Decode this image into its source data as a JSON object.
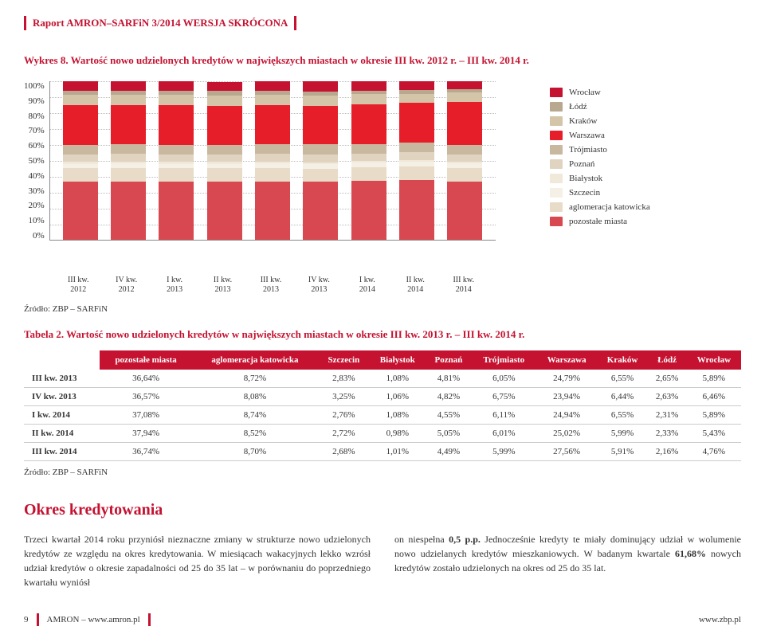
{
  "report_header": "Raport AMRON–SARFiN 3/2014 WERSJA SKRÓCONA",
  "chart": {
    "title": "Wykres 8. Wartość nowo udzielonych kredytów w największych miastach w okresie III kw. 2012 r. – III kw. 2014 r.",
    "yticks": [
      "100%",
      "90%",
      "80%",
      "70%",
      "60%",
      "50%",
      "40%",
      "30%",
      "20%",
      "10%",
      "0%"
    ],
    "xlabels": [
      "III kw.\n2012",
      "IV kw.\n2012",
      "I kw.\n2013",
      "II kw.\n2013",
      "III kw.\n2013",
      "IV kw.\n2013",
      "I kw.\n2014",
      "II kw.\n2014",
      "III kw.\n2014"
    ],
    "series": [
      {
        "label": "Wrocław",
        "color": "#c41230"
      },
      {
        "label": "Łódź",
        "color": "#b8a890"
      },
      {
        "label": "Kraków",
        "color": "#d4c4a8"
      },
      {
        "label": "Warszawa",
        "color": "#e61e2a"
      },
      {
        "label": "Trójmiasto",
        "color": "#c9b8a0"
      },
      {
        "label": "Poznań",
        "color": "#e0d4c0"
      },
      {
        "label": "Białystok",
        "color": "#f0e8d8"
      },
      {
        "label": "Szczecin",
        "color": "#f5f0e5"
      },
      {
        "label": "aglomeracja katowicka",
        "color": "#e8dcc8"
      },
      {
        "label": "pozostałe miasta",
        "color": "#d84850"
      }
    ],
    "stacks": [
      [
        36.5,
        8.7,
        2.8,
        1.1,
        4.8,
        6.1,
        24.8,
        6.5,
        2.6,
        5.9
      ],
      [
        36.6,
        8.7,
        2.9,
        1.1,
        4.8,
        6.2,
        24.5,
        6.5,
        2.6,
        5.9
      ],
      [
        36.5,
        8.7,
        2.8,
        1.1,
        4.8,
        6.1,
        24.8,
        6.5,
        2.6,
        5.9
      ],
      [
        36.6,
        8.6,
        2.8,
        1.1,
        4.8,
        6.1,
        24.7,
        6.5,
        2.6,
        5.9
      ],
      [
        36.64,
        8.72,
        2.83,
        1.08,
        4.81,
        6.05,
        24.79,
        6.55,
        2.65,
        5.89
      ],
      [
        36.57,
        8.08,
        3.25,
        1.06,
        4.82,
        6.75,
        23.94,
        6.44,
        2.63,
        6.46
      ],
      [
        37.08,
        8.74,
        2.76,
        1.08,
        4.55,
        6.11,
        24.94,
        6.55,
        2.31,
        5.89
      ],
      [
        37.94,
        8.52,
        2.72,
        0.98,
        5.05,
        6.01,
        25.02,
        5.99,
        2.33,
        5.43
      ],
      [
        36.74,
        8.7,
        2.68,
        1.01,
        4.49,
        5.99,
        27.56,
        5.91,
        2.16,
        4.76
      ]
    ],
    "stack_colors_bottom_to_top": [
      "#d84850",
      "#e8dcc8",
      "#f5f0e5",
      "#f0e8d8",
      "#e0d4c0",
      "#c9b8a0",
      "#e61e2a",
      "#d4c4a8",
      "#b8a890",
      "#c41230"
    ],
    "grid_color": "#bbbbbb",
    "background_color": "#ffffff"
  },
  "source_label": "Źródło: ZBP – SARFiN",
  "table": {
    "title": "Tabela 2. Wartość nowo udzielonych kredytów w największych miastach w okresie III kw. 2013 r. – III kw. 2014 r.",
    "columns": [
      "",
      "pozostałe miasta",
      "aglomeracja katowicka",
      "Szczecin",
      "Białystok",
      "Poznań",
      "Trójmiasto",
      "Warszawa",
      "Kraków",
      "Łódź",
      "Wrocław"
    ],
    "rows": [
      [
        "III kw. 2013",
        "36,64%",
        "8,72%",
        "2,83%",
        "1,08%",
        "4,81%",
        "6,05%",
        "24,79%",
        "6,55%",
        "2,65%",
        "5,89%"
      ],
      [
        "IV kw. 2013",
        "36,57%",
        "8,08%",
        "3,25%",
        "1,06%",
        "4,82%",
        "6,75%",
        "23,94%",
        "6,44%",
        "2,63%",
        "6,46%"
      ],
      [
        "I kw. 2014",
        "37,08%",
        "8,74%",
        "2,76%",
        "1,08%",
        "4,55%",
        "6,11%",
        "24,94%",
        "6,55%",
        "2,31%",
        "5,89%"
      ],
      [
        "II kw. 2014",
        "37,94%",
        "8,52%",
        "2,72%",
        "0,98%",
        "5,05%",
        "6,01%",
        "25,02%",
        "5,99%",
        "2,33%",
        "5,43%"
      ],
      [
        "III kw. 2014",
        "36,74%",
        "8,70%",
        "2,68%",
        "1,01%",
        "4,49%",
        "5,99%",
        "27,56%",
        "5,91%",
        "2,16%",
        "4,76%"
      ]
    ]
  },
  "section": {
    "heading": "Okres kredytowania",
    "col1": "Trzeci kwartał 2014 roku przyniósł nieznaczne zmiany w strukturze nowo udzielonych kredytów ze względu na okres kredytowania. W miesiącach wakacyjnych lekko wzrósł udział kredytów o okresie zapadalności od 25 do 35 lat – w porównaniu do poprzedniego kwartału wyniósł",
    "col2_a": "on niespełna ",
    "col2_b": "0,5 p.p.",
    "col2_c": " Jednocześnie kredyty te miały dominujący udział w wolumenie nowo udzielanych kredytów mieszkaniowych. W badanym kwartale ",
    "col2_d": "61,68%",
    "col2_e": " nowych kredytów zostało udzielonych na okres od 25 do 35 lat."
  },
  "footer": {
    "page": "9",
    "left": "AMRON – www.amron.pl",
    "right": "www.zbp.pl"
  }
}
